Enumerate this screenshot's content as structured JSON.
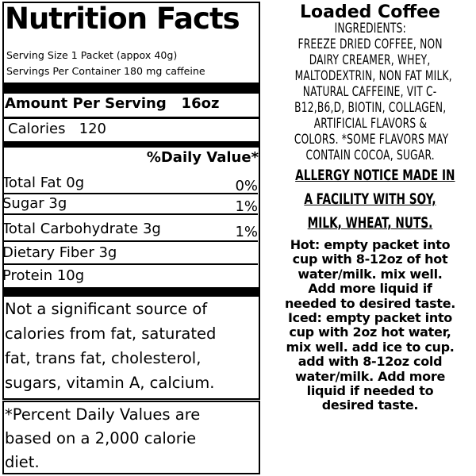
{
  "label": {
    "title": "Nutrition Facts",
    "serving_size": "Serving Size 1 Packet (appox 40g)",
    "servings_per_container": "Servings Per Container 180 mg caffeine",
    "amount_per_serving": "Amount Per Serving   16oz",
    "calories": "Calories   120",
    "daily_value_header": "%Daily Value*",
    "nutrients": [
      {
        "name": "Total Fat 0g",
        "pct": "0%"
      },
      {
        "name": "Sugar 3g",
        "pct": "1%"
      },
      {
        "name": "Total Carbohydrate 3g",
        "pct": "1%"
      },
      {
        "name": "Dietary Fiber 3g",
        "pct": ""
      },
      {
        "name": "Protein 10g",
        "pct": ""
      }
    ],
    "note_lines": [
      "Not a significant source of",
      "calories from fat, saturated",
      "fat, trans fat, cholesterol,",
      "sugars, vitamin A, calcium."
    ],
    "footnote_lines": [
      "*Percent Daily Values are",
      "based on a 2,000 calorie",
      "diet."
    ]
  },
  "product": {
    "name": "Loaded Coffee",
    "ingredients_lines": [
      "INGREDIENTS:",
      "FREEZE DRIED COFFEE, NON",
      "DAIRY CREAMER, WHEY,",
      "MALTODEXTRIN, NON FAT MILK,",
      "NATURAL CAFFEINE, VIT C-",
      "B12,B6,D, BIOTIN, COLLAGEN,",
      "ARTIFICIAL FLAVORS &",
      "COLORS. *SOME FLAVORS MAY",
      "CONTAIN COCOA, SUGAR."
    ],
    "allergy_lines": [
      "ALLERGY NOTICE MADE IN",
      "A FACILITY WITH SOY,",
      "MILK, WHEAT, NUTS."
    ],
    "instructions_lines": [
      "Hot: empty packet into",
      "cup with 8-12oz of hot",
      "water/milk. mix well.",
      "Add more liquid if",
      "needed to desired taste.",
      "Iced: empty packet into",
      "cup with 2oz hot water,",
      "mix well. add ice to cup.",
      "add with 8-12oz cold",
      "water/milk. Add more",
      "liquid if needed to",
      "desired taste."
    ]
  }
}
